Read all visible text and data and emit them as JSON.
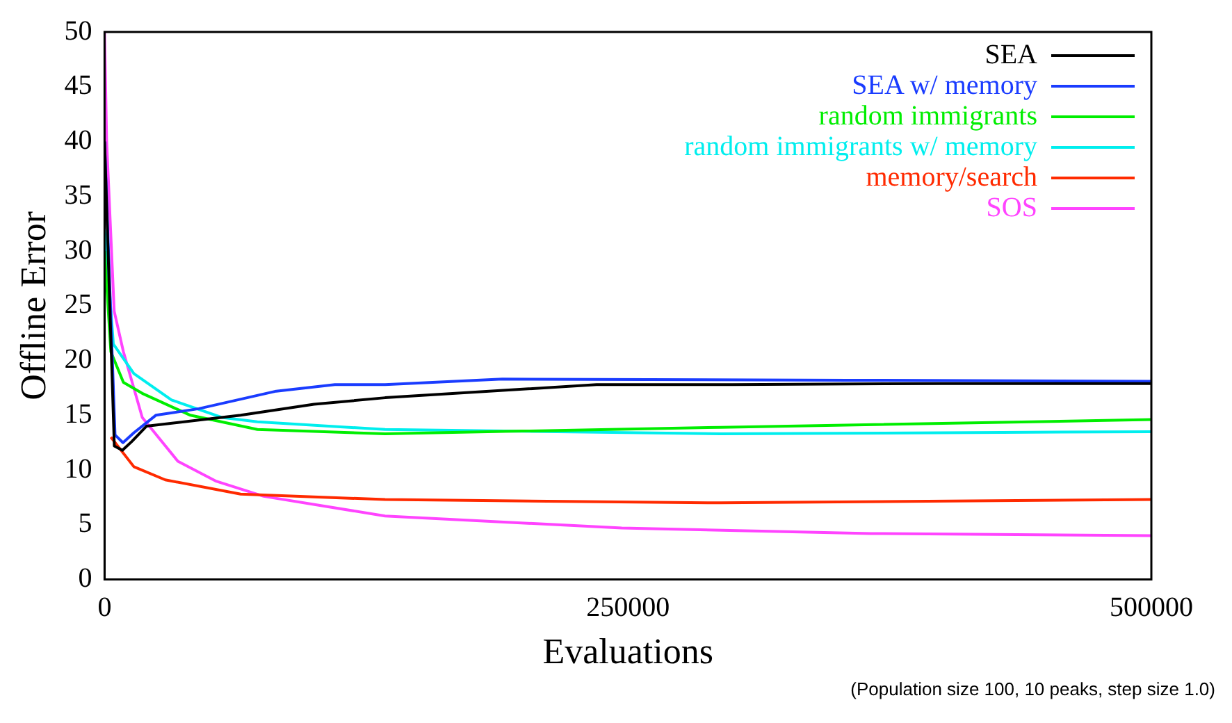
{
  "chart_data": {
    "type": "line",
    "xlabel": "Evaluations",
    "ylabel": "Offline Error",
    "xlim": [
      0,
      500000
    ],
    "xticks": [
      0,
      250000,
      500000
    ],
    "ylim": [
      0,
      50
    ],
    "yticks": [
      0,
      5,
      10,
      15,
      20,
      25,
      30,
      35,
      40,
      45,
      50
    ],
    "grid": false,
    "legend": "top right",
    "marker": "none",
    "line_style": "solid",
    "annotations": [
      "(Population size 100, 10 peaks, step size 1.0)"
    ],
    "series": [
      {
        "name": "SEA",
        "color": "#000000",
        "x": [
          0,
          4650,
          8500,
          13000,
          20000,
          65000,
          100000,
          134000,
          235000,
          300000,
          400000,
          500000
        ],
        "values": [
          40,
          12.2,
          11.8,
          12.6,
          14.0,
          15.0,
          16.0,
          16.6,
          17.8,
          17.8,
          17.9,
          17.9
        ]
      },
      {
        "name": "SEA w/ memory",
        "color": "#1a3cff",
        "x": [
          0,
          5000,
          8800,
          14000,
          24500,
          45000,
          82000,
          110000,
          134000,
          190000,
          355000,
          500000
        ],
        "values": [
          40,
          13.2,
          12.5,
          13.4,
          15.0,
          15.6,
          17.2,
          17.8,
          17.8,
          18.3,
          18.2,
          18.1
        ]
      },
      {
        "name": "random immigrants",
        "color": "#00ee00",
        "x": [
          0,
          3000,
          9000,
          18000,
          41000,
          73000,
          134000,
          158000,
          294000,
          500000
        ],
        "values": [
          30,
          20.8,
          18.0,
          17.0,
          15.0,
          13.7,
          13.3,
          13.4,
          13.9,
          14.6
        ]
      },
      {
        "name": "random immigrants w/ memory",
        "color": "#00eeee",
        "x": [
          0,
          2000,
          4200,
          14000,
          32000,
          56000,
          73000,
          134000,
          294000,
          500000
        ],
        "values": [
          32,
          27.3,
          21.5,
          18.8,
          16.4,
          14.8,
          14.4,
          13.7,
          13.3,
          13.5
        ]
      },
      {
        "name": "memory/search",
        "color": "#ff2a00",
        "x": [
          3000,
          14000,
          29000,
          65000,
          134000,
          294000,
          500000
        ],
        "values": [
          13.0,
          10.3,
          9.1,
          7.8,
          7.3,
          7.0,
          7.3
        ]
      },
      {
        "name": "SOS",
        "color": "#ff44ff",
        "x": [
          0,
          1000,
          4600,
          9000,
          18000,
          35000,
          53000,
          76000,
          134000,
          247000,
          366000,
          500000
        ],
        "values": [
          50,
          40,
          24.5,
          20.8,
          14.8,
          10.8,
          9.0,
          7.6,
          5.8,
          4.7,
          4.2,
          4.0
        ]
      }
    ]
  }
}
